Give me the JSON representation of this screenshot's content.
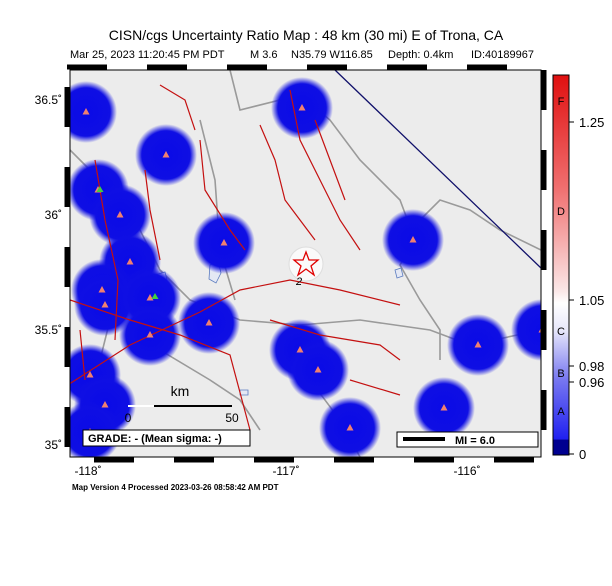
{
  "header": {
    "title": "CISN/cgs Uncertainty Ratio Map : 48 km (30 mi) E of Trona, CA",
    "subtitle": [
      "Mar 25, 2023 11:20:45 PM PDT",
      "M 3.6",
      "N35.79 W116.85",
      "Depth: 0.4km",
      "ID:40189967"
    ]
  },
  "map": {
    "lat_labels": [
      "36.5˚",
      "36˚",
      "35.5˚",
      "35˚"
    ],
    "lon_labels": [
      "-118˚",
      "-117˚",
      "-116˚"
    ],
    "epicenter_label": "2",
    "scale": {
      "unit": "km",
      "labels": [
        "0",
        "50"
      ]
    },
    "grade": "GRADE: - (Mean sigma: -)",
    "intensity": "MI = 6.0"
  },
  "colorbar": {
    "letters": [
      "F",
      "D",
      "C",
      "B",
      "A"
    ],
    "ticks": [
      "1.25",
      "1.05",
      "0.98",
      "0.96",
      "0"
    ]
  },
  "footer": "Map Version 4 Processed 2023-03-26 08:58:42 AM PDT"
}
